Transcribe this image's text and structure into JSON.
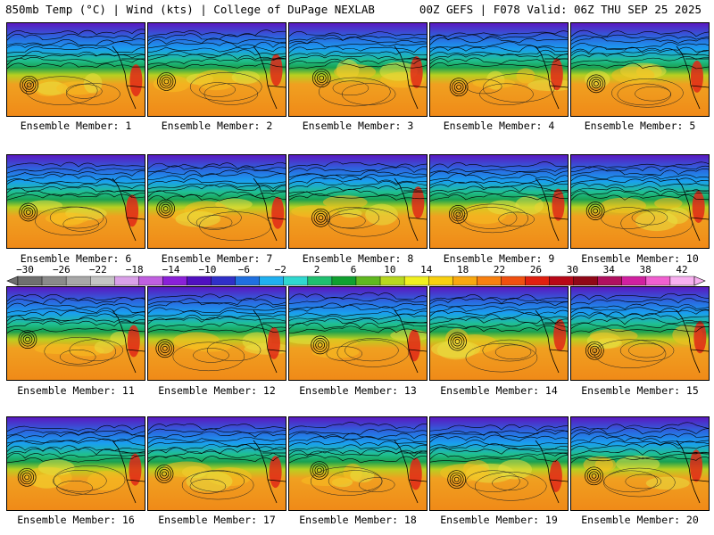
{
  "header": {
    "left_title": "850mb Temp (°C) | Wind (kts) | College of DuPage NEXLAB",
    "right_title": "00Z GEFS | F078 Valid: 06Z THU SEP 25 2025"
  },
  "members": [
    {
      "label": "Ensemble Member: 1"
    },
    {
      "label": "Ensemble Member: 2"
    },
    {
      "label": "Ensemble Member: 3"
    },
    {
      "label": "Ensemble Member: 4"
    },
    {
      "label": "Ensemble Member: 5"
    },
    {
      "label": "Ensemble Member: 6"
    },
    {
      "label": "Ensemble Member: 7"
    },
    {
      "label": "Ensemble Member: 8"
    },
    {
      "label": "Ensemble Member: 9"
    },
    {
      "label": "Ensemble Member: 10"
    },
    {
      "label": "Ensemble Member: 11"
    },
    {
      "label": "Ensemble Member: 12"
    },
    {
      "label": "Ensemble Member: 13"
    },
    {
      "label": "Ensemble Member: 14"
    },
    {
      "label": "Ensemble Member: 15"
    },
    {
      "label": "Ensemble Member: 16"
    },
    {
      "label": "Ensemble Member: 17"
    },
    {
      "label": "Ensemble Member: 18"
    },
    {
      "label": "Ensemble Member: 19"
    },
    {
      "label": "Ensemble Member: 20"
    }
  ],
  "colorbar": {
    "labels": [
      "−30",
      "−26",
      "−22",
      "−18",
      "−14",
      "−10",
      "−6",
      "−2",
      "2",
      "6",
      "10",
      "14",
      "18",
      "22",
      "26",
      "30",
      "34",
      "38",
      "42"
    ],
    "colors": [
      "#6f6f6f",
      "#8a8a8a",
      "#a8a8a8",
      "#c4c4c4",
      "#d9a0e8",
      "#c060e0",
      "#8a20d8",
      "#5010c0",
      "#3030c8",
      "#2070e0",
      "#20b0f0",
      "#30d8d0",
      "#20c070",
      "#10a030",
      "#60b820",
      "#b8d820",
      "#f0f020",
      "#f8d010",
      "#f8a810",
      "#f88010",
      "#f05010",
      "#e02010",
      "#b80818",
      "#900818",
      "#b01060",
      "#d020a0",
      "#f060d0",
      "#f8b0f0"
    ]
  },
  "map_colors": {
    "cold": "#5a18c0",
    "cool": "#1a9ff0",
    "mild": "#1aa050",
    "warm": "#f0a020",
    "hot": "#e02818"
  }
}
